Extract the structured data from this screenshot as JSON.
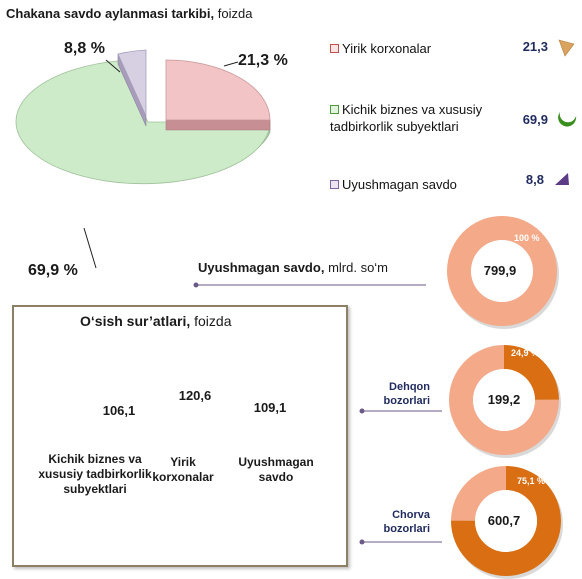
{
  "title": {
    "main": "Chakana savdo aylanmasi tarkibi,",
    "sub": "foizda"
  },
  "chart_data": [
    {
      "type": "pie",
      "title": "Chakana savdo aylanmasi tarkibi, foizda",
      "categories": [
        "Yirik korxonalar",
        "Kichik biznes va xususiy tadbirkorlik subyektlari",
        "Uyushmagan savdo"
      ],
      "values": [
        21.3,
        69.9,
        8.8
      ],
      "labels": [
        "21,3 %",
        "69,9 %",
        "8,8 %"
      ],
      "colors": [
        "#f2c4c6",
        "#cdebc9",
        "#d7d0e3"
      ],
      "legend": "right"
    },
    {
      "type": "bar",
      "title": "O'sish sur'atlari, foizda",
      "categories": [
        "Kichik biznes va xususiy tadbirkorlik subyektlari",
        "Yirik korxonalar",
        "Uyushmagan savdo"
      ],
      "values": [
        106.1,
        120.6,
        109.1
      ],
      "labels": [
        "106,1",
        "120,6",
        "109,1"
      ]
    },
    {
      "type": "pie",
      "title": "Uyushmagan savdo, mlrd. so'm",
      "categories": [
        "Uyushmagan savdo",
        "Dehqon bozorlari",
        "Chorva bozorlari"
      ],
      "values": [
        799.9,
        199.2,
        600.7
      ],
      "labels": [
        "799,9",
        "199,2",
        "600,7"
      ],
      "shares": [
        100,
        24.9,
        75.1
      ],
      "share_labels": [
        "100 %",
        "24,9 %",
        "75,1 %"
      ]
    }
  ],
  "legend": {
    "items": [
      {
        "label": "Yirik korxonalar",
        "value": "21,3",
        "color": "#c0504d",
        "icon": "slice-icon",
        "icon_color": "#d9a25f"
      },
      {
        "label": "Kichik biznes va xususiy tadbirkorlik subyektlari",
        "value": "69,9",
        "color": "#4e9a3a",
        "icon": "crescent-icon",
        "icon_color": "#3a8f1e"
      },
      {
        "label": "Uyushmagan savdo",
        "value": "8,8",
        "color": "#8064a2",
        "icon": "triangle-icon",
        "icon_color": "#5b3b86"
      }
    ]
  },
  "pie_labels": {
    "yirik": "21,3 %",
    "kichik": "69,9 %",
    "uyushmagan": "8,8 %"
  },
  "growth": {
    "title_main": "O‘sish sur’atlari,",
    "title_sub": "foizda",
    "items": [
      {
        "label": "Kichik biznes va xususiy tadbirkorlik subyektlari",
        "value": "106,1"
      },
      {
        "label": "Yirik korxonalar",
        "value": "120,6"
      },
      {
        "label": "Uyushmagan savdo",
        "value": "109,1"
      }
    ]
  },
  "unorganized": {
    "title_main": "Uyushmagan savdo,",
    "title_sub": "mlrd. so‘m",
    "total": {
      "value": "799,9",
      "pct": "100 %"
    },
    "dehqon": {
      "label": "Dehqon bozorlari",
      "value": "199,2",
      "pct": "24,9 %",
      "share": 24.9
    },
    "chorva": {
      "label": "Chorva bozorlari",
      "value": "600,7",
      "pct": "75,1 %",
      "share": 75.1
    }
  },
  "colors": {
    "donut_light": "#f4a988",
    "donut_dark": "#d96f12",
    "frame": "#8c7f66",
    "cylinder": "#eeb6bb"
  }
}
